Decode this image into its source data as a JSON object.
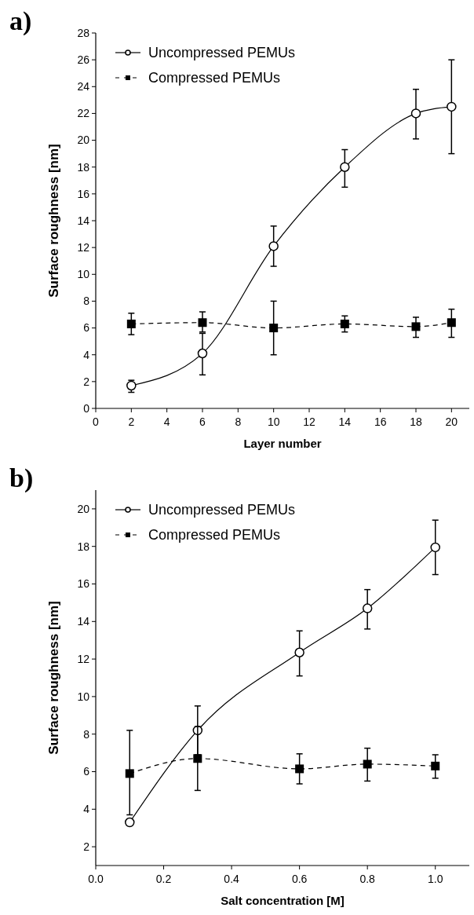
{
  "chart_data": [
    {
      "type": "line",
      "title": "a)",
      "xlabel": "Layer number",
      "ylabel": "Surface roughness [nm]",
      "xlim": [
        0,
        21
      ],
      "xticks": [
        0,
        2,
        4,
        6,
        8,
        10,
        12,
        14,
        16,
        18,
        20
      ],
      "ylim": [
        0,
        28
      ],
      "yticks": [
        0,
        2,
        4,
        6,
        8,
        10,
        12,
        14,
        16,
        18,
        20,
        22,
        24,
        26,
        28
      ],
      "grid": false,
      "legend": "top left",
      "x": [
        2,
        6,
        10,
        14,
        18,
        20
      ],
      "series": [
        {
          "name": "Uncompressed PEMUs",
          "color": "#000000",
          "marker": "circle",
          "line_style": "solid",
          "values": [
            1.7,
            4.1,
            12.1,
            18,
            22,
            22.5
          ],
          "errors": [
            [
              1.2,
              2.1
            ],
            [
              2.5,
              5.6
            ],
            [
              10.6,
              13.6
            ],
            [
              16.5,
              19.3
            ],
            [
              20.1,
              23.8
            ],
            [
              19,
              26
            ]
          ]
        },
        {
          "name": "Compressed PEMUs",
          "color": "#000000",
          "marker": "square",
          "line_style": "dashed",
          "values": [
            6.3,
            6.4,
            6.0,
            6.3,
            6.1,
            6.4
          ],
          "errors": [
            [
              5.5,
              7.1
            ],
            [
              5.7,
              7.2
            ],
            [
              4,
              8
            ],
            [
              5.7,
              6.9
            ],
            [
              5.3,
              6.8
            ],
            [
              5.3,
              7.4
            ]
          ]
        }
      ]
    },
    {
      "type": "line",
      "title": "b)",
      "xlabel": "Salt concentration [M]",
      "ylabel": "Surface roughness [nm]",
      "xlim": [
        0,
        1.1
      ],
      "xticks": [
        {
          "value": 0,
          "label": "0.0"
        },
        0.2,
        0.4,
        0.6,
        0.8,
        {
          "value": 1,
          "label": "1.0"
        }
      ],
      "ylim": [
        1,
        21
      ],
      "yticks": [
        2,
        4,
        6,
        8,
        10,
        12,
        14,
        16,
        18,
        20
      ],
      "grid": false,
      "legend": "top left",
      "x": [
        0.1,
        0.3,
        0.6,
        0.8,
        1.0
      ],
      "series": [
        {
          "name": "Uncompressed PEMUs",
          "color": "#000000",
          "marker": "circle",
          "line_style": "solid",
          "values": [
            3.3,
            8.2,
            12.35,
            14.7,
            17.95
          ],
          "errors": [
            null,
            [
              6.9,
              9.5
            ],
            [
              11.1,
              13.5
            ],
            [
              13.6,
              15.7
            ],
            [
              16.5,
              19.4
            ]
          ]
        },
        {
          "name": "Compressed PEMUs",
          "color": "#000000",
          "marker": "square",
          "line_style": "dashed",
          "values": [
            5.9,
            6.7,
            6.15,
            6.4,
            6.3
          ],
          "errors": [
            [
              3.7,
              8.2
            ],
            [
              5.0,
              8.4
            ],
            [
              5.35,
              6.95
            ],
            [
              5.5,
              7.25
            ],
            [
              5.65,
              6.9
            ]
          ]
        }
      ]
    }
  ]
}
